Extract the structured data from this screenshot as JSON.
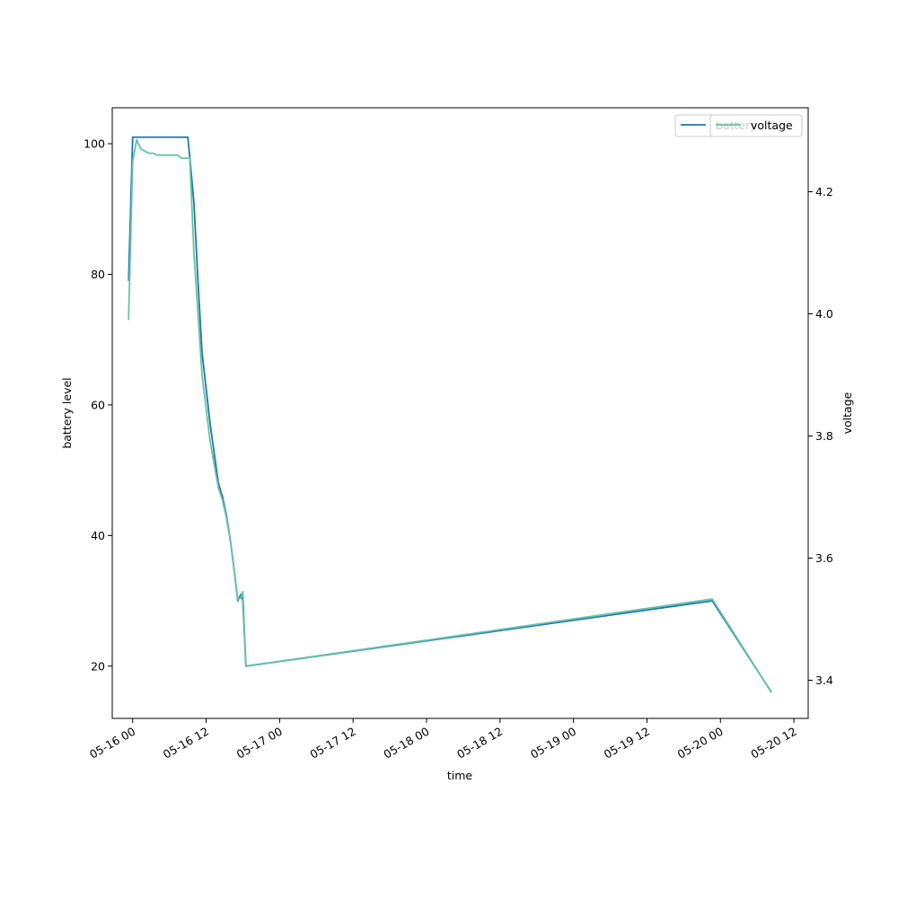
{
  "chart_data": {
    "type": "line",
    "xlabel": "time",
    "ylabel_left": "battery level",
    "ylabel_right": "voltage",
    "x_ticks": [
      "05-16 00",
      "05-16 12",
      "05-17 00",
      "05-17 12",
      "05-18 00",
      "05-18 12",
      "05-19 00",
      "05-19 12",
      "05-20 00",
      "05-20 12"
    ],
    "y_left_ticks": [
      20,
      40,
      60,
      80,
      100
    ],
    "y_right_ticks": [
      "3.4",
      "3.6",
      "3.8",
      "4.0",
      "4.2"
    ],
    "xlim": [
      "2024-05-15T20:40",
      "2024-05-20T14:20"
    ],
    "ylim_left": [
      12.0,
      105.5
    ],
    "ylim_right": [
      3.3375,
      4.3375
    ],
    "legend_placement": "top-right",
    "grid": false,
    "series": [
      {
        "name": "battery",
        "axis": "left",
        "color": "#1f77b4",
        "points": [
          [
            "2024-05-15T23:20",
            79
          ],
          [
            "2024-05-16T00:00",
            101
          ],
          [
            "2024-05-16T09:00",
            101
          ],
          [
            "2024-05-16T09:20",
            98
          ],
          [
            "2024-05-16T10:00",
            91
          ],
          [
            "2024-05-16T10:40",
            79
          ],
          [
            "2024-05-16T11:20",
            68
          ],
          [
            "2024-05-16T12:40",
            57
          ],
          [
            "2024-05-16T14:00",
            48
          ],
          [
            "2024-05-16T14:40",
            46
          ],
          [
            "2024-05-16T15:20",
            43
          ],
          [
            "2024-05-16T16:00",
            39
          ],
          [
            "2024-05-16T16:40",
            34
          ],
          [
            "2024-05-16T17:10",
            30
          ],
          [
            "2024-05-16T17:40",
            31
          ],
          [
            "2024-05-16T18:00",
            30
          ],
          [
            "2024-05-16T18:30",
            20
          ],
          [
            "2024-05-19T22:40",
            30
          ],
          [
            "2024-05-20T08:20",
            16
          ]
        ]
      },
      {
        "name": "voltage",
        "axis": "right",
        "color": "#66c2a5",
        "points": [
          [
            "2024-05-15T23:20",
            3.99
          ],
          [
            "2024-05-16T00:00",
            4.25
          ],
          [
            "2024-05-16T00:40",
            4.285
          ],
          [
            "2024-05-16T01:20",
            4.27
          ],
          [
            "2024-05-16T02:40",
            4.263
          ],
          [
            "2024-05-16T03:20",
            4.263
          ],
          [
            "2024-05-16T04:00",
            4.26
          ],
          [
            "2024-05-16T06:40",
            4.26
          ],
          [
            "2024-05-16T07:20",
            4.26
          ],
          [
            "2024-05-16T08:00",
            4.255
          ],
          [
            "2024-05-16T08:40",
            4.255
          ],
          [
            "2024-05-16T09:20",
            4.255
          ],
          [
            "2024-05-16T10:00",
            4.1
          ],
          [
            "2024-05-16T10:40",
            4.0
          ],
          [
            "2024-05-16T11:20",
            3.9
          ],
          [
            "2024-05-16T12:40",
            3.79
          ],
          [
            "2024-05-16T14:00",
            3.715
          ],
          [
            "2024-05-16T14:40",
            3.695
          ],
          [
            "2024-05-16T15:20",
            3.665
          ],
          [
            "2024-05-16T16:00",
            3.625
          ],
          [
            "2024-05-16T16:40",
            3.575
          ],
          [
            "2024-05-16T17:10",
            3.532
          ],
          [
            "2024-05-16T17:40",
            3.535
          ],
          [
            "2024-05-16T18:00",
            3.545
          ],
          [
            "2024-05-16T18:30",
            3.423
          ],
          [
            "2024-05-19T22:40",
            3.533
          ],
          [
            "2024-05-20T08:20",
            3.38
          ]
        ]
      }
    ]
  }
}
